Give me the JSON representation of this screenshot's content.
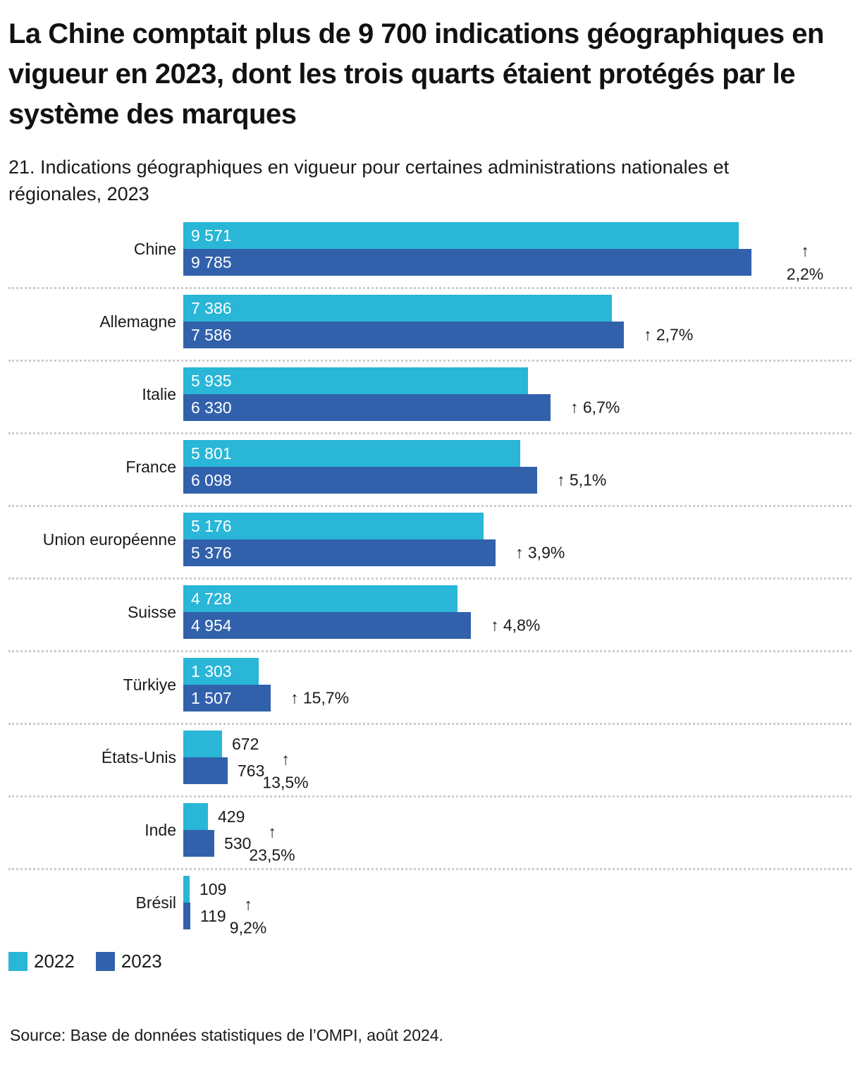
{
  "title": "La Chine comptait plus de 9 700 indications géographiques en vigueur en 2023, dont les trois quarts étaient protégés par le système des marques",
  "subtitle": "21. Indications géographiques en vigueur pour certaines administrations nationales et régionales, 2023",
  "source": "Source: Base de données statistiques de l’OMPI, août 2024.",
  "arrow_icon": "↑",
  "colors": {
    "series_2022": "#29b6d7",
    "series_2023": "#3261ac",
    "separator": "#cccccc",
    "text": "#1a1a1a",
    "bar_label_inside": "#ffffff"
  },
  "legend": [
    {
      "label": "2022",
      "color": "#29b6d7"
    },
    {
      "label": "2023",
      "color": "#3261ac"
    }
  ],
  "chart_data": {
    "type": "bar",
    "orientation": "horizontal",
    "grouping": "paired",
    "title": "21. Indications géographiques en vigueur pour certaines administrations nationales et régionales, 2023",
    "xlabel": "",
    "ylabel": "",
    "x_max_value": 9785,
    "grid": false,
    "legend_position": "bottom-left",
    "categories": [
      "Chine",
      "Allemagne",
      "Italie",
      "France",
      "Union européenne",
      "Suisse",
      "Türkiye",
      "États-Unis",
      "Inde",
      "Brésil"
    ],
    "series": [
      {
        "name": "2022",
        "color": "#29b6d7",
        "values": [
          9571,
          7386,
          5935,
          5801,
          5176,
          4728,
          1303,
          672,
          429,
          109
        ],
        "display": [
          "9 571",
          "7 386",
          "5 935",
          "5 801",
          "5 176",
          "4 728",
          "1 303",
          "672",
          "429",
          "109"
        ]
      },
      {
        "name": "2023",
        "color": "#3261ac",
        "values": [
          9785,
          7586,
          6330,
          6098,
          5376,
          4954,
          1507,
          763,
          530,
          119
        ],
        "display": [
          "9 785",
          "7 586",
          "6 330",
          "6 098",
          "5 376",
          "4 954",
          "1 507",
          "763",
          "530",
          "119"
        ]
      }
    ],
    "pct_change": [
      "2,2%",
      "2,7%",
      "6,7%",
      "5,1%",
      "3,9%",
      "4,8%",
      "15,7%",
      "13,5%",
      "23,5%",
      "9,2%"
    ],
    "row_layout": [
      {
        "value_labels": "inside",
        "pct_layout": "stacked"
      },
      {
        "value_labels": "inside",
        "pct_layout": "inline"
      },
      {
        "value_labels": "inside",
        "pct_layout": "inline"
      },
      {
        "value_labels": "inside",
        "pct_layout": "inline"
      },
      {
        "value_labels": "inside",
        "pct_layout": "inline"
      },
      {
        "value_labels": "inside",
        "pct_layout": "inline"
      },
      {
        "value_labels": "inside",
        "pct_layout": "inline"
      },
      {
        "value_labels": "outside",
        "pct_layout": "stacked"
      },
      {
        "value_labels": "outside",
        "pct_layout": "stacked"
      },
      {
        "value_labels": "outside",
        "pct_layout": "stacked"
      }
    ]
  }
}
